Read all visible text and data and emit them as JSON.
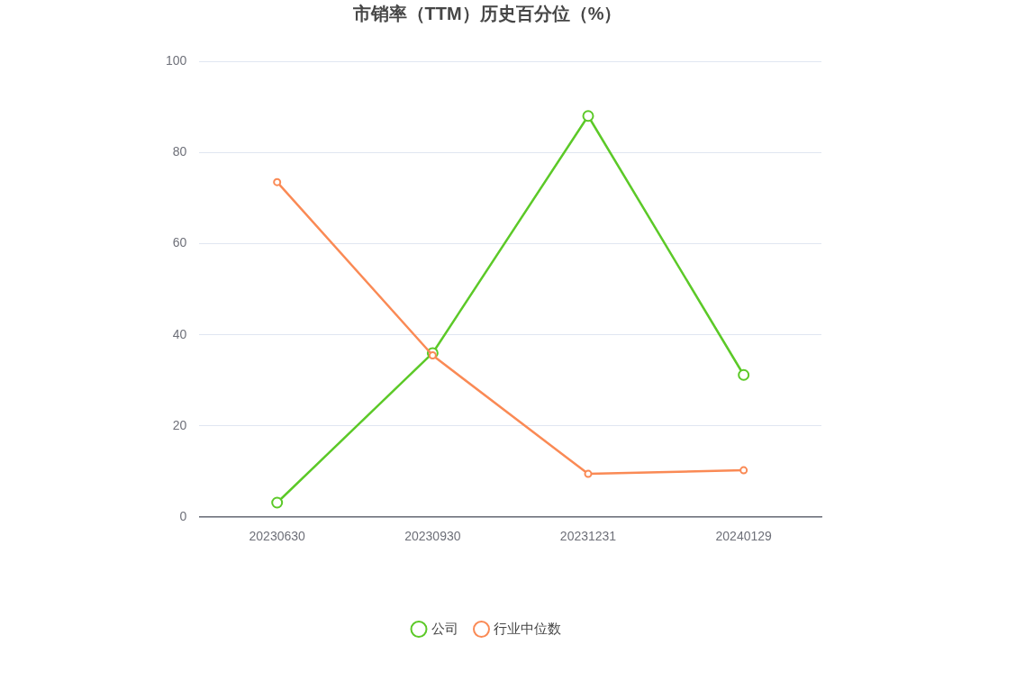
{
  "chart_data": {
    "type": "line",
    "title": "市销率（TTM）历史百分位（%）",
    "categories": [
      "20230630",
      "20230930",
      "20231231",
      "20240129"
    ],
    "series": [
      {
        "name": "公司",
        "color": "#5cc928",
        "values": [
          3.2,
          36,
          88,
          31.2
        ]
      },
      {
        "name": "行业中位数",
        "color": "#fa8a55",
        "values": [
          73.5,
          35.5,
          9.5,
          10.3
        ]
      }
    ],
    "ylim": [
      0,
      100
    ],
    "yticks": [
      0,
      20,
      40,
      60,
      80,
      100
    ],
    "grid": "y",
    "legend": "bottom",
    "marker": "circle",
    "line_style": "solid"
  }
}
